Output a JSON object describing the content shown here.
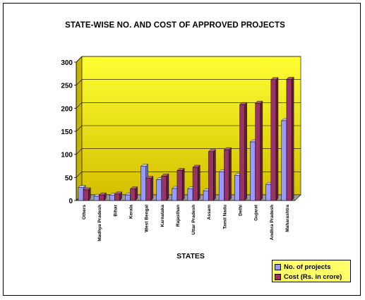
{
  "colors": {
    "projects": "#9999ff",
    "cost": "#993366",
    "plot_bg_top": "#ffff33",
    "plot_bg_bottom": "#d4c000",
    "legend_bg": "#ffff66"
  },
  "chart_data": {
    "type": "bar",
    "title": "STATE-WISE NO. AND COST OF APPROVED PROJECTS",
    "xlabel": "STATES",
    "ylabel": "",
    "ylim": [
      0,
      300
    ],
    "yticks": [
      "0",
      "50",
      "100",
      "150",
      "200",
      "250",
      "300"
    ],
    "grid": true,
    "legend_position": "bottom-right",
    "categories": [
      "Others",
      "Madhya Pradesh",
      "Bihar",
      "Kerala",
      "West Bengal",
      "Karnataka",
      "Rajasthan",
      "Uttar Pradesh",
      "Assam",
      "Tamil Nadu",
      "Delhi",
      "Gujarat",
      "Andhra Pradesh",
      "Maharashtra"
    ],
    "series": [
      {
        "name": "No. of projects",
        "values": [
          28,
          9,
          11,
          12,
          74,
          45,
          26,
          25,
          21,
          62,
          54,
          127,
          35,
          173
        ]
      },
      {
        "name": "Cost (Rs. in crore)",
        "values": [
          23,
          12,
          14,
          25,
          48,
          53,
          65,
          72,
          106,
          110,
          208,
          211,
          262,
          263
        ]
      }
    ]
  }
}
